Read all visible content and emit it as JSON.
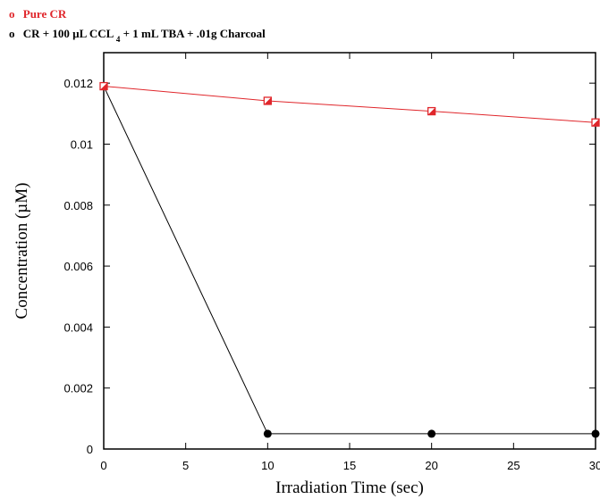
{
  "chart_data": {
    "type": "line",
    "title": "",
    "xlabel": "Irradiation Time (sec)",
    "ylabel": "Concentration (µM)",
    "xlim": [
      0,
      30
    ],
    "ylim": [
      0,
      0.013
    ],
    "x_ticks": [
      0,
      5,
      10,
      15,
      20,
      25,
      30
    ],
    "x_tick_labels": [
      "0",
      "5",
      "10",
      "15",
      "20",
      "25",
      "30"
    ],
    "y_ticks": [
      0,
      0.002,
      0.004,
      0.006,
      0.008,
      0.01,
      0.012
    ],
    "y_tick_labels": [
      "0",
      "0.002",
      "0.004",
      "0.006",
      "0.008",
      "0.01",
      "0.012"
    ],
    "grid": false,
    "legend_position": "top-left, above plot",
    "series": [
      {
        "name": "Pure CR",
        "legend_marker": "o",
        "color": "#e0262b",
        "marker": "square-half-filled",
        "x": [
          0,
          10,
          20,
          30
        ],
        "y": [
          0.0119,
          0.01142,
          0.01108,
          0.01071
        ]
      },
      {
        "name": "CR + 100 µL CCL + 1 mL TBA + .01g Charcoal",
        "legend_marker": "o",
        "legend_parts": [
          "CR + 100 µL CCL",
          "4",
          " + 1 mL TBA + .01g Charcoal"
        ],
        "color": "#000000",
        "marker": "circle-filled",
        "x": [
          0,
          10,
          20,
          30
        ],
        "y": [
          0.0119,
          0.0005,
          0.0005,
          0.0005
        ]
      }
    ]
  }
}
